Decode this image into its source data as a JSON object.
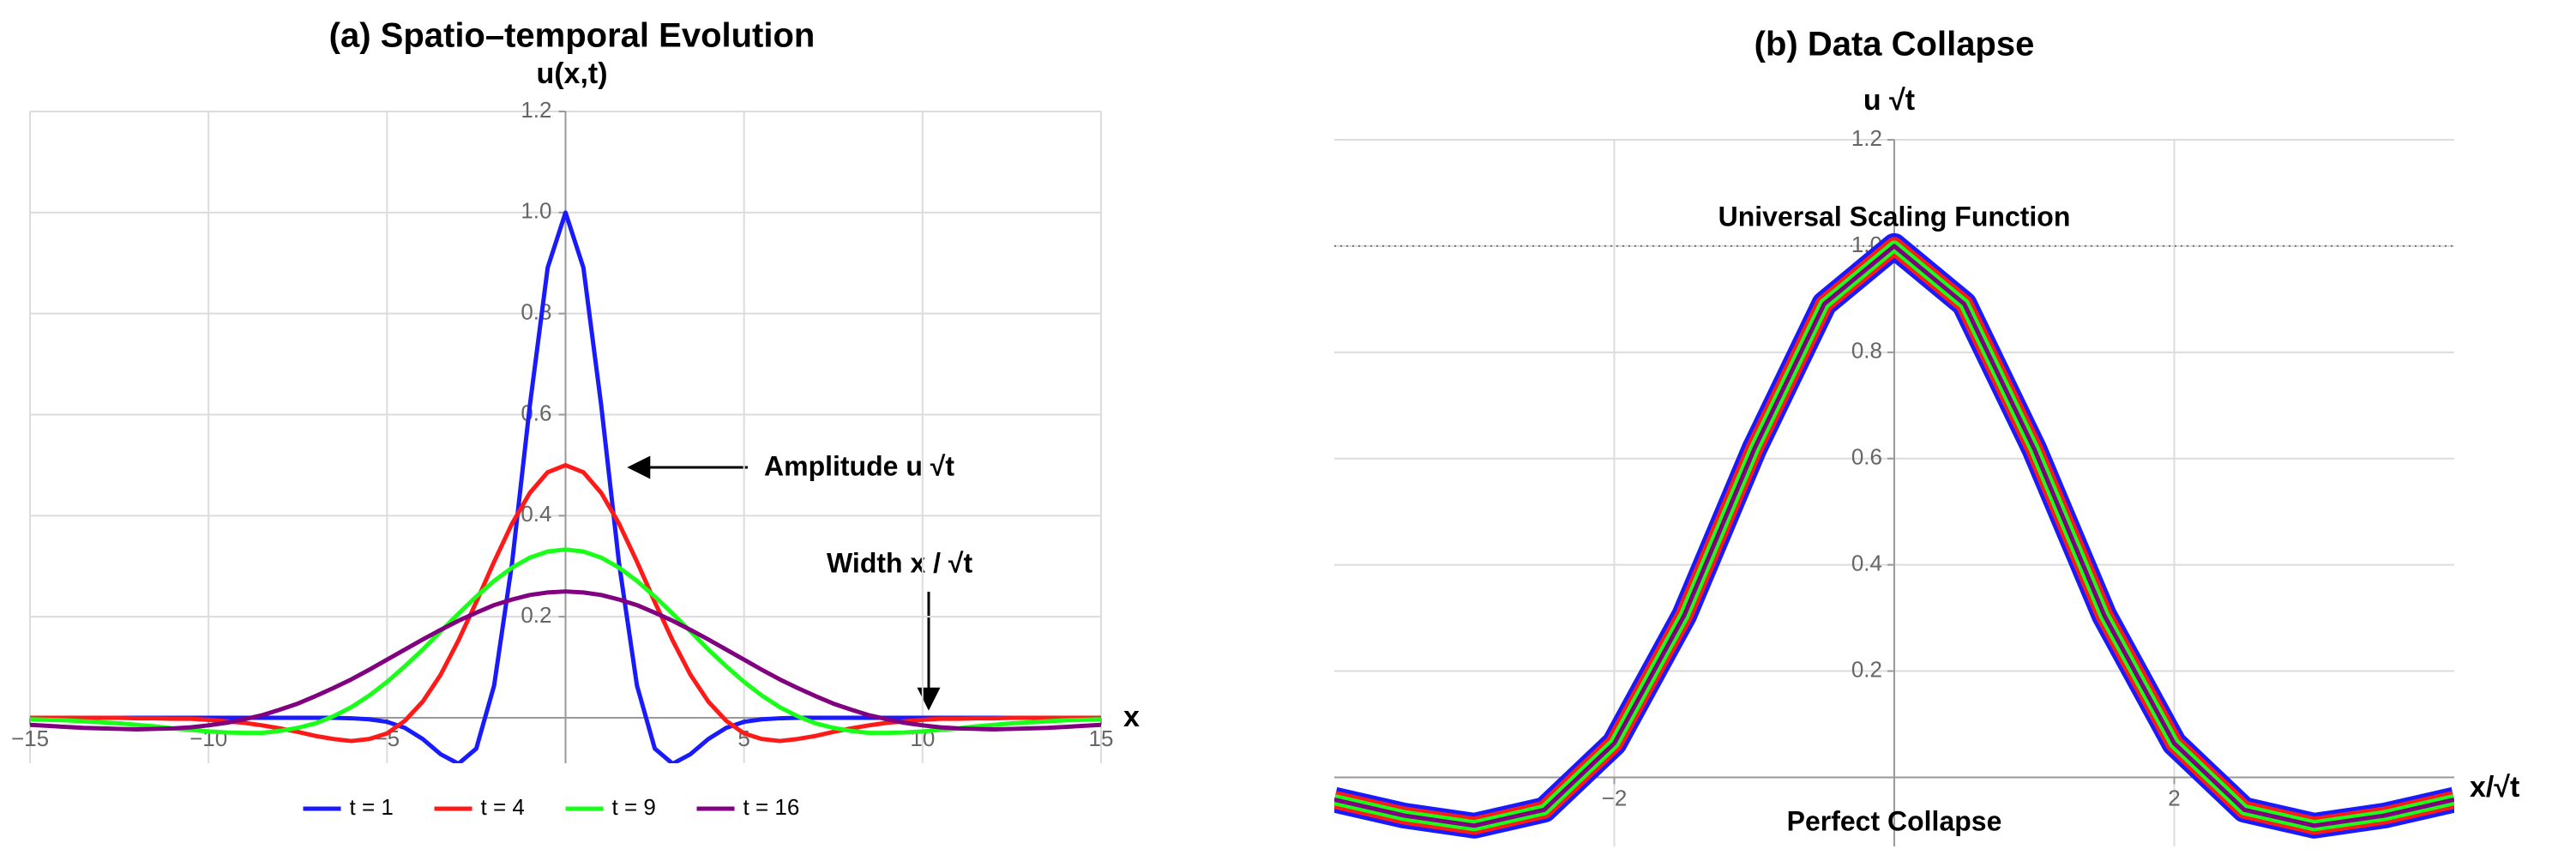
{
  "chart_data": [
    {
      "type": "line",
      "title": "(a) Spatio–temporal Evolution",
      "xlabel": "x",
      "ylabel": "u(x,t)",
      "annotations": [
        "Amplitude u √t",
        "Width x / √t"
      ],
      "xlim": [
        -15,
        15
      ],
      "ylim": [
        -0.09,
        1.2
      ],
      "xticks": [
        {
          "value": -15,
          "label": "−15"
        },
        {
          "value": -10,
          "label": "−10"
        },
        {
          "value": -5,
          "label": "−5"
        },
        5,
        10,
        15
      ],
      "yticks": [
        0.2,
        0.4,
        0.6,
        0.8,
        {
          "value": 1,
          "label": "1.0"
        },
        1.2
      ],
      "grid": true,
      "legend": "bottom",
      "x": [
        -15,
        -14.5,
        -14,
        -13.5,
        -13,
        -12.5,
        -12,
        -11.5,
        -11,
        -10.5,
        -10,
        -9.5,
        -9,
        -8.5,
        -8,
        -7.5,
        -7,
        -6.5,
        -6,
        -5.5,
        -5,
        -4.5,
        -4,
        -3.5,
        -3,
        -2.5,
        -2,
        -1.5,
        -1,
        -0.5,
        0,
        0.5,
        1,
        1.5,
        2,
        2.5,
        3,
        3.5,
        4,
        4.5,
        5,
        5.5,
        6,
        6.5,
        7,
        7.5,
        8,
        8.5,
        9,
        9.5,
        10,
        10.5,
        11,
        11.5,
        12,
        12.5,
        13,
        13.5,
        14,
        14.5,
        15
      ],
      "series": [
        {
          "name": "t = 1",
          "color": "#1a1aff",
          "values": [
            0,
            0,
            0,
            0,
            0,
            0,
            0,
            0,
            0,
            0,
            0,
            0,
            0,
            0,
            0,
            0,
            0,
            0,
            -0.001,
            -0.003,
            -0.008,
            -0.02,
            -0.042,
            -0.072,
            -0.091,
            -0.061,
            0.064,
            0.305,
            0.618,
            0.891,
            1,
            0.891,
            0.618,
            0.305,
            0.064,
            -0.061,
            -0.091,
            -0.072,
            -0.042,
            -0.02,
            -0.008,
            -0.003,
            -0.001,
            0,
            0,
            0,
            0,
            0,
            0,
            0,
            0,
            0,
            0,
            0,
            0,
            0,
            0,
            0,
            0,
            0,
            0
          ]
        },
        {
          "name": "t = 4",
          "color": "#ff1a1a",
          "values": [
            0,
            0,
            0,
            0,
            0,
            0,
            -0.001,
            -0.001,
            -0.002,
            -0.002,
            -0.004,
            -0.007,
            -0.01,
            -0.015,
            -0.021,
            -0.028,
            -0.036,
            -0.042,
            -0.046,
            -0.042,
            -0.031,
            -0.006,
            0.032,
            0.085,
            0.153,
            0.229,
            0.309,
            0.384,
            0.445,
            0.486,
            0.5,
            0.486,
            0.445,
            0.384,
            0.309,
            0.229,
            0.153,
            0.085,
            0.032,
            -0.006,
            -0.031,
            -0.042,
            -0.046,
            -0.042,
            -0.036,
            -0.028,
            -0.021,
            -0.015,
            -0.01,
            -0.007,
            -0.004,
            -0.002,
            -0.002,
            -0.001,
            -0.001,
            0,
            0,
            0,
            0,
            0,
            0
          ]
        },
        {
          "name": "t = 9",
          "color": "#1aff1a",
          "values": [
            -0.003,
            -0.004,
            -0.005,
            -0.007,
            -0.009,
            -0.011,
            -0.014,
            -0.017,
            -0.021,
            -0.024,
            -0.027,
            -0.029,
            -0.03,
            -0.03,
            -0.026,
            -0.02,
            -0.011,
            0.003,
            0.021,
            0.044,
            0.071,
            0.102,
            0.135,
            0.171,
            0.206,
            0.24,
            0.271,
            0.297,
            0.317,
            0.329,
            0.333,
            0.329,
            0.317,
            0.297,
            0.271,
            0.24,
            0.206,
            0.171,
            0.135,
            0.102,
            0.071,
            0.044,
            0.021,
            0.003,
            -0.011,
            -0.02,
            -0.026,
            -0.03,
            -0.03,
            -0.029,
            -0.027,
            -0.024,
            -0.021,
            -0.017,
            -0.014,
            -0.011,
            -0.009,
            -0.007,
            -0.005,
            -0.004,
            -0.003
          ]
        },
        {
          "name": "t = 16",
          "color": "#800080",
          "values": [
            -0.014,
            -0.016,
            -0.018,
            -0.02,
            -0.021,
            -0.022,
            -0.023,
            -0.022,
            -0.021,
            -0.019,
            -0.015,
            -0.01,
            -0.003,
            0.005,
            0.016,
            0.028,
            0.043,
            0.059,
            0.076,
            0.095,
            0.115,
            0.135,
            0.155,
            0.174,
            0.192,
            0.208,
            0.223,
            0.234,
            0.243,
            0.248,
            0.25,
            0.248,
            0.243,
            0.234,
            0.223,
            0.208,
            0.192,
            0.174,
            0.155,
            0.135,
            0.115,
            0.095,
            0.076,
            0.059,
            0.043,
            0.028,
            0.016,
            0.005,
            -0.003,
            -0.01,
            -0.015,
            -0.019,
            -0.021,
            -0.022,
            -0.023,
            -0.022,
            -0.021,
            -0.02,
            -0.018,
            -0.016,
            -0.014
          ]
        }
      ]
    },
    {
      "type": "line",
      "title": "(b) Data Collapse",
      "xlabel": "x/√t",
      "ylabel": "u √t",
      "annotations": [
        "Universal Scaling Function",
        "Perfect Collapse"
      ],
      "hlines": [
        1
      ],
      "xlim": [
        -4,
        4
      ],
      "ylim": [
        -0.13,
        1.2
      ],
      "xticks": [
        {
          "value": -2,
          "label": "−2"
        },
        2
      ],
      "yticks": [
        0.2,
        0.4,
        0.6,
        0.8,
        {
          "value": 1,
          "label": "1.0"
        },
        1.2
      ],
      "grid": true,
      "x": [
        -4,
        -3.5,
        -3,
        -2.5,
        -2,
        -1.5,
        -1,
        -0.5,
        0,
        0.5,
        1,
        1.5,
        2,
        2.5,
        3,
        3.5,
        4
      ],
      "series": [
        {
          "color": "#1a1aff",
          "values": [
            -0.042,
            -0.072,
            -0.091,
            -0.061,
            0.064,
            0.305,
            0.618,
            0.891,
            1,
            0.891,
            0.618,
            0.305,
            0.064,
            -0.061,
            -0.091,
            -0.072,
            -0.042
          ]
        },
        {
          "color": "#ff1a1a",
          "values": [
            -0.042,
            -0.072,
            -0.091,
            -0.061,
            0.064,
            0.305,
            0.618,
            0.891,
            1,
            0.891,
            0.618,
            0.305,
            0.064,
            -0.061,
            -0.091,
            -0.072,
            -0.042
          ]
        },
        {
          "color": "#1aff1a",
          "values": [
            -0.042,
            -0.072,
            -0.091,
            -0.061,
            0.064,
            0.305,
            0.618,
            0.891,
            1,
            0.891,
            0.618,
            0.305,
            0.064,
            -0.061,
            -0.091,
            -0.072,
            -0.042
          ]
        },
        {
          "color": "#800080",
          "values": [
            -0.042,
            -0.072,
            -0.091,
            -0.061,
            0.064,
            0.305,
            0.618,
            0.891,
            1,
            0.891,
            0.618,
            0.305,
            0.064,
            -0.061,
            -0.091,
            -0.072,
            -0.042
          ]
        }
      ]
    }
  ]
}
